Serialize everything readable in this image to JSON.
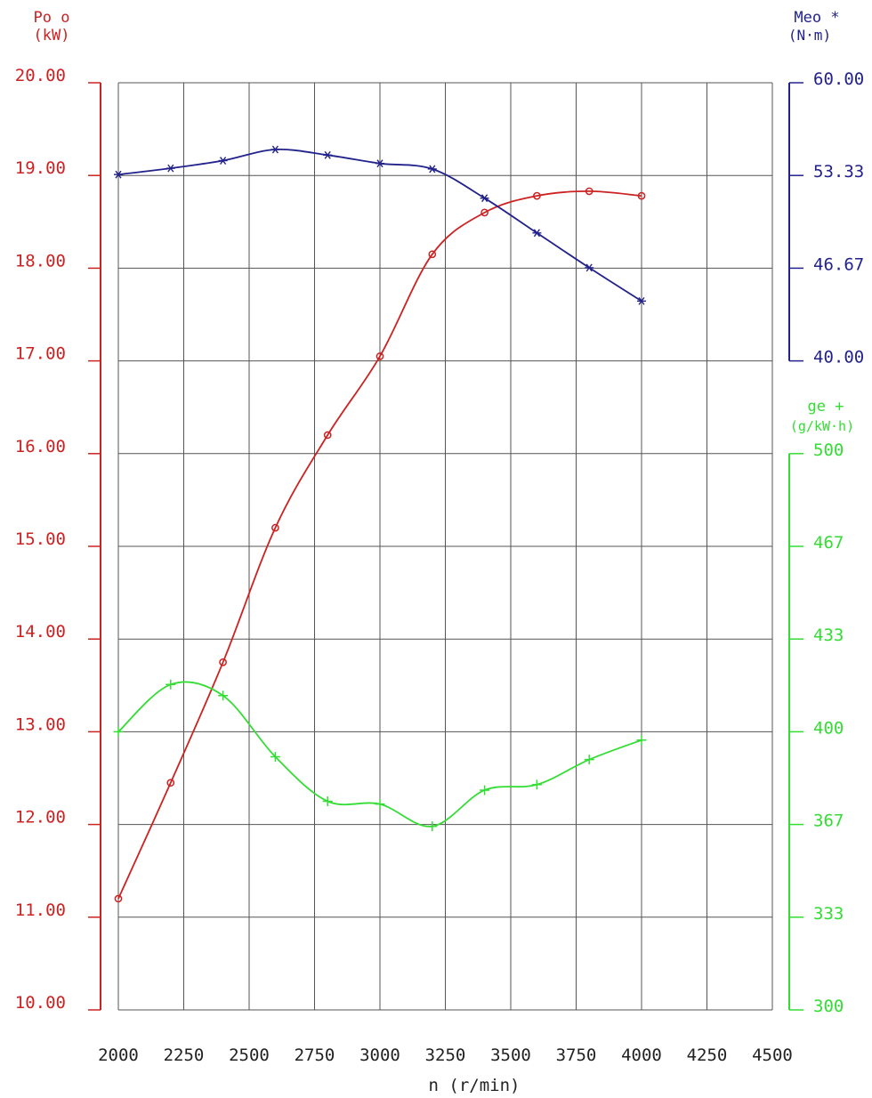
{
  "chart_data": {
    "type": "line",
    "x": [
      2000,
      2200,
      2400,
      2600,
      2800,
      3000,
      3200,
      3400,
      3600,
      3800,
      4000
    ],
    "xlabel": "n (r/min)",
    "xlim": [
      2000,
      4500
    ],
    "xticks": [
      "2000",
      "2250",
      "2500",
      "2750",
      "3000",
      "3250",
      "3500",
      "3750",
      "4000",
      "4250",
      "4500"
    ],
    "grid": true,
    "series": [
      {
        "name": "Po",
        "marker": "o",
        "axis": "left",
        "color": "#cc2222",
        "unit": "(kW)",
        "values": [
          11.2,
          12.45,
          13.75,
          15.2,
          16.2,
          17.05,
          18.15,
          18.6,
          18.78,
          18.83,
          18.78
        ]
      },
      {
        "name": "Meo",
        "marker": "*",
        "axis": "right-top",
        "color": "#22228c",
        "unit": "(N·m)",
        "values": [
          53.4,
          53.85,
          54.4,
          55.2,
          54.8,
          54.2,
          53.8,
          51.7,
          49.2,
          46.7,
          44.3
        ]
      },
      {
        "name": "ge",
        "marker": "+",
        "axis": "right-bottom",
        "color": "#33dd33",
        "unit": "(g/kW·h)",
        "values": [
          400,
          417,
          413,
          391,
          375,
          374,
          366,
          379,
          381,
          390,
          397
        ]
      }
    ],
    "axes": {
      "left": {
        "min": 10,
        "max": 20,
        "ticks": [
          "10.00",
          "11.00",
          "12.00",
          "13.00",
          "14.00",
          "15.00",
          "16.00",
          "17.00",
          "18.00",
          "19.00",
          "20.00"
        ],
        "label_line1": "Po o",
        "label_line2": "(kW)",
        "color": "#cc2222"
      },
      "right_top": {
        "min": 40,
        "max": 60,
        "ticks": [
          "40.00",
          "46.67",
          "53.33",
          "60.00"
        ],
        "label_line1": "Meo *",
        "label_line2": "(N·m)",
        "color": "#22228c"
      },
      "right_bottom": {
        "min": 300,
        "max": 500,
        "ticks": [
          "300",
          "333",
          "367",
          "400",
          "433",
          "467",
          "500"
        ],
        "label_line1": "ge  +",
        "label_line2": "(g/kW·h)",
        "color": "#33dd33"
      }
    }
  }
}
